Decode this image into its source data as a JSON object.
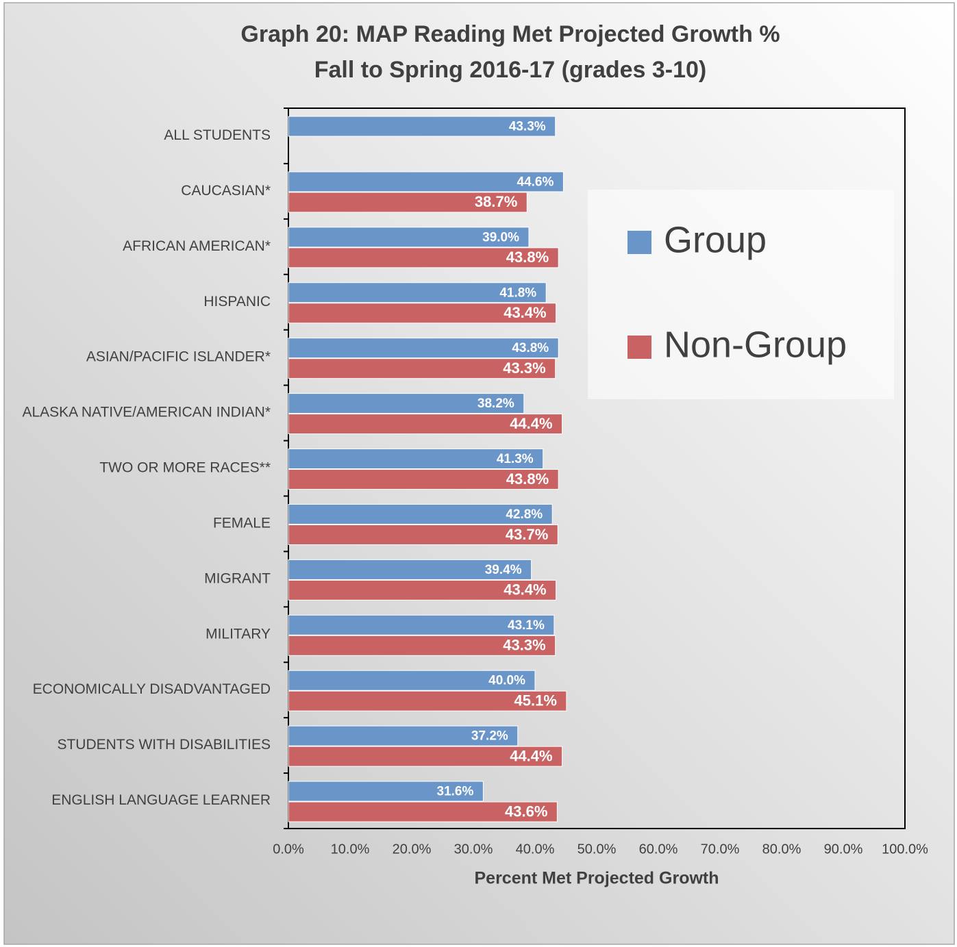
{
  "chart_data": {
    "type": "bar",
    "orientation": "horizontal",
    "title": "Graph 20: MAP Reading Met Projected Growth %",
    "subtitle": "Fall to Spring 2016-17 (grades 3-10)",
    "xlabel": "Percent Met Projected Growth",
    "categories": [
      "ALL STUDENTS",
      "CAUCASIAN*",
      "AFRICAN AMERICAN*",
      "HISPANIC",
      "ASIAN/PACIFIC ISLANDER*",
      "ALASKA NATIVE/AMERICAN INDIAN*",
      "TWO OR MORE RACES**",
      "FEMALE",
      "MIGRANT",
      "MILITARY",
      "ECONOMICALLY DISADVANTAGED",
      "STUDENTS WITH DISABILITIES",
      "ENGLISH LANGUAGE LEARNER"
    ],
    "series": [
      {
        "name": "Group",
        "color": "#6a95c9",
        "values": [
          43.3,
          44.6,
          39.0,
          41.8,
          43.8,
          38.2,
          41.3,
          42.8,
          39.4,
          43.1,
          40.0,
          37.2,
          31.6
        ],
        "value_labels": [
          "43.3%",
          "44.6%",
          "39.0%",
          "41.8%",
          "43.8%",
          "38.2%",
          "41.3%",
          "42.8%",
          "39.4%",
          "43.1%",
          "40.0%",
          "37.2%",
          "31.6%"
        ]
      },
      {
        "name": "Non-Group",
        "color": "#c96262",
        "values": [
          null,
          38.7,
          43.8,
          43.4,
          43.3,
          44.4,
          43.8,
          43.7,
          43.4,
          43.3,
          45.1,
          44.4,
          43.6
        ],
        "value_labels": [
          null,
          "38.7%",
          "43.8%",
          "43.4%",
          "43.3%",
          "44.4%",
          "43.8%",
          "43.7%",
          "43.4%",
          "43.3%",
          "45.1%",
          "44.4%",
          "43.6%"
        ]
      }
    ],
    "xlim": [
      0,
      100
    ],
    "xticks": [
      {
        "value": 0,
        "label": "0.0%"
      },
      {
        "value": 10,
        "label": "10.0%"
      },
      {
        "value": 20,
        "label": "20.0%"
      },
      {
        "value": 30,
        "label": "30.0%"
      },
      {
        "value": 40,
        "label": "40.0%"
      },
      {
        "value": 50,
        "label": "50.0%"
      },
      {
        "value": 60,
        "label": "60.0%"
      },
      {
        "value": 70,
        "label": "70.0%"
      },
      {
        "value": 80,
        "label": "80.0%"
      },
      {
        "value": 90,
        "label": "90.0%"
      },
      {
        "value": 100,
        "label": "100.0%"
      }
    ],
    "legend": "right"
  }
}
